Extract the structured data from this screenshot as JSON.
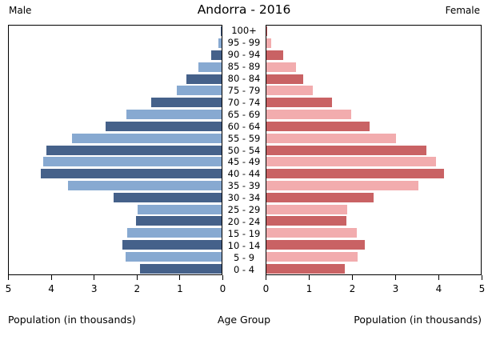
{
  "title": "Andorra - 2016",
  "header": {
    "male_label": "Male",
    "female_label": "Female"
  },
  "footer": {
    "left_axis_label": "Population (in thousands)",
    "center_axis_label": "Age Group",
    "right_axis_label": "Population (in thousands)"
  },
  "colors": {
    "male_dark": "#45618a",
    "male_light": "#87a9d1",
    "female_dark": "#c96264",
    "female_light": "#f2acae",
    "axis": "#000000"
  },
  "chart_data": {
    "type": "bar",
    "subtype": "population-pyramid",
    "title": "Andorra - 2016",
    "ylabel": "Age Group",
    "xlabel_left": "Population (in thousands)",
    "xlabel_right": "Population (in thousands)",
    "units": "thousands",
    "xlim": [
      0,
      5
    ],
    "ticks": [
      0,
      1,
      2,
      3,
      4,
      5
    ],
    "grid": false,
    "categories": [
      "0 - 4",
      "5 - 9",
      "10 - 14",
      "15 - 19",
      "20 - 24",
      "25 - 29",
      "30 - 34",
      "35 - 39",
      "40 - 44",
      "45 - 49",
      "50 - 54",
      "55 - 59",
      "60 - 64",
      "65 - 69",
      "70 - 74",
      "75 - 79",
      "80 - 84",
      "85 - 89",
      "90 - 94",
      "95 - 99",
      "100+"
    ],
    "series": [
      {
        "name": "Male",
        "side": "left",
        "values": [
          1.92,
          2.26,
          2.34,
          2.22,
          2.01,
          1.98,
          2.54,
          3.61,
          4.25,
          4.2,
          4.11,
          3.51,
          2.73,
          2.24,
          1.66,
          1.05,
          0.82,
          0.54,
          0.25,
          0.08,
          0.01
        ]
      },
      {
        "name": "Female",
        "side": "right",
        "values": [
          1.82,
          2.13,
          2.29,
          2.11,
          1.87,
          1.89,
          2.5,
          3.54,
          4.15,
          3.95,
          3.73,
          3.03,
          2.41,
          1.98,
          1.53,
          1.08,
          0.85,
          0.69,
          0.4,
          0.12,
          0.02
        ]
      }
    ]
  }
}
